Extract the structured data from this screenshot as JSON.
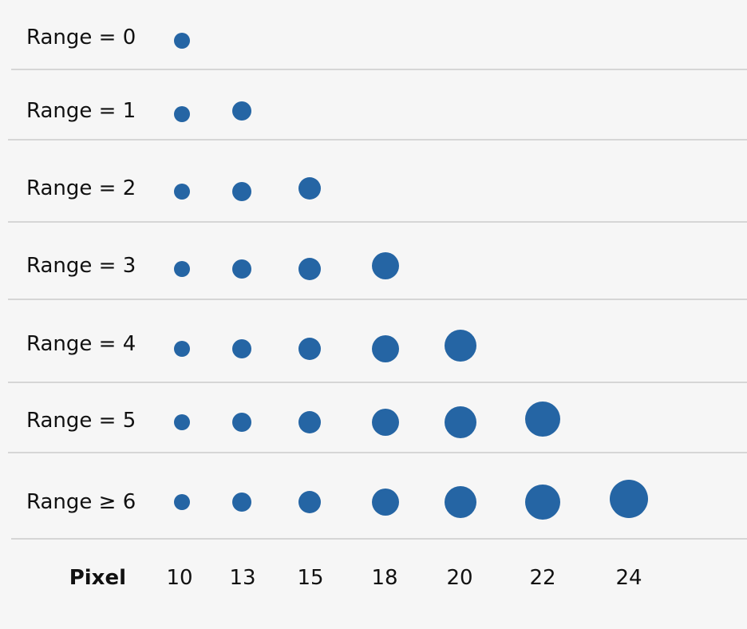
{
  "rows": [
    {
      "label": "Range = 0"
    },
    {
      "label": "Range = 1"
    },
    {
      "label": "Range = 2"
    },
    {
      "label": "Range = 3"
    },
    {
      "label": "Range = 4"
    },
    {
      "label": "Range = 5"
    },
    {
      "label": "Range ≥ 6"
    }
  ],
  "footer": {
    "title": "Pixel",
    "values": [
      "10",
      "13",
      "15",
      "18",
      "20",
      "22",
      "24"
    ]
  },
  "colors": {
    "dot": "#2565a4",
    "divider": "#d6d6d6",
    "background": "#f6f6f6"
  }
}
